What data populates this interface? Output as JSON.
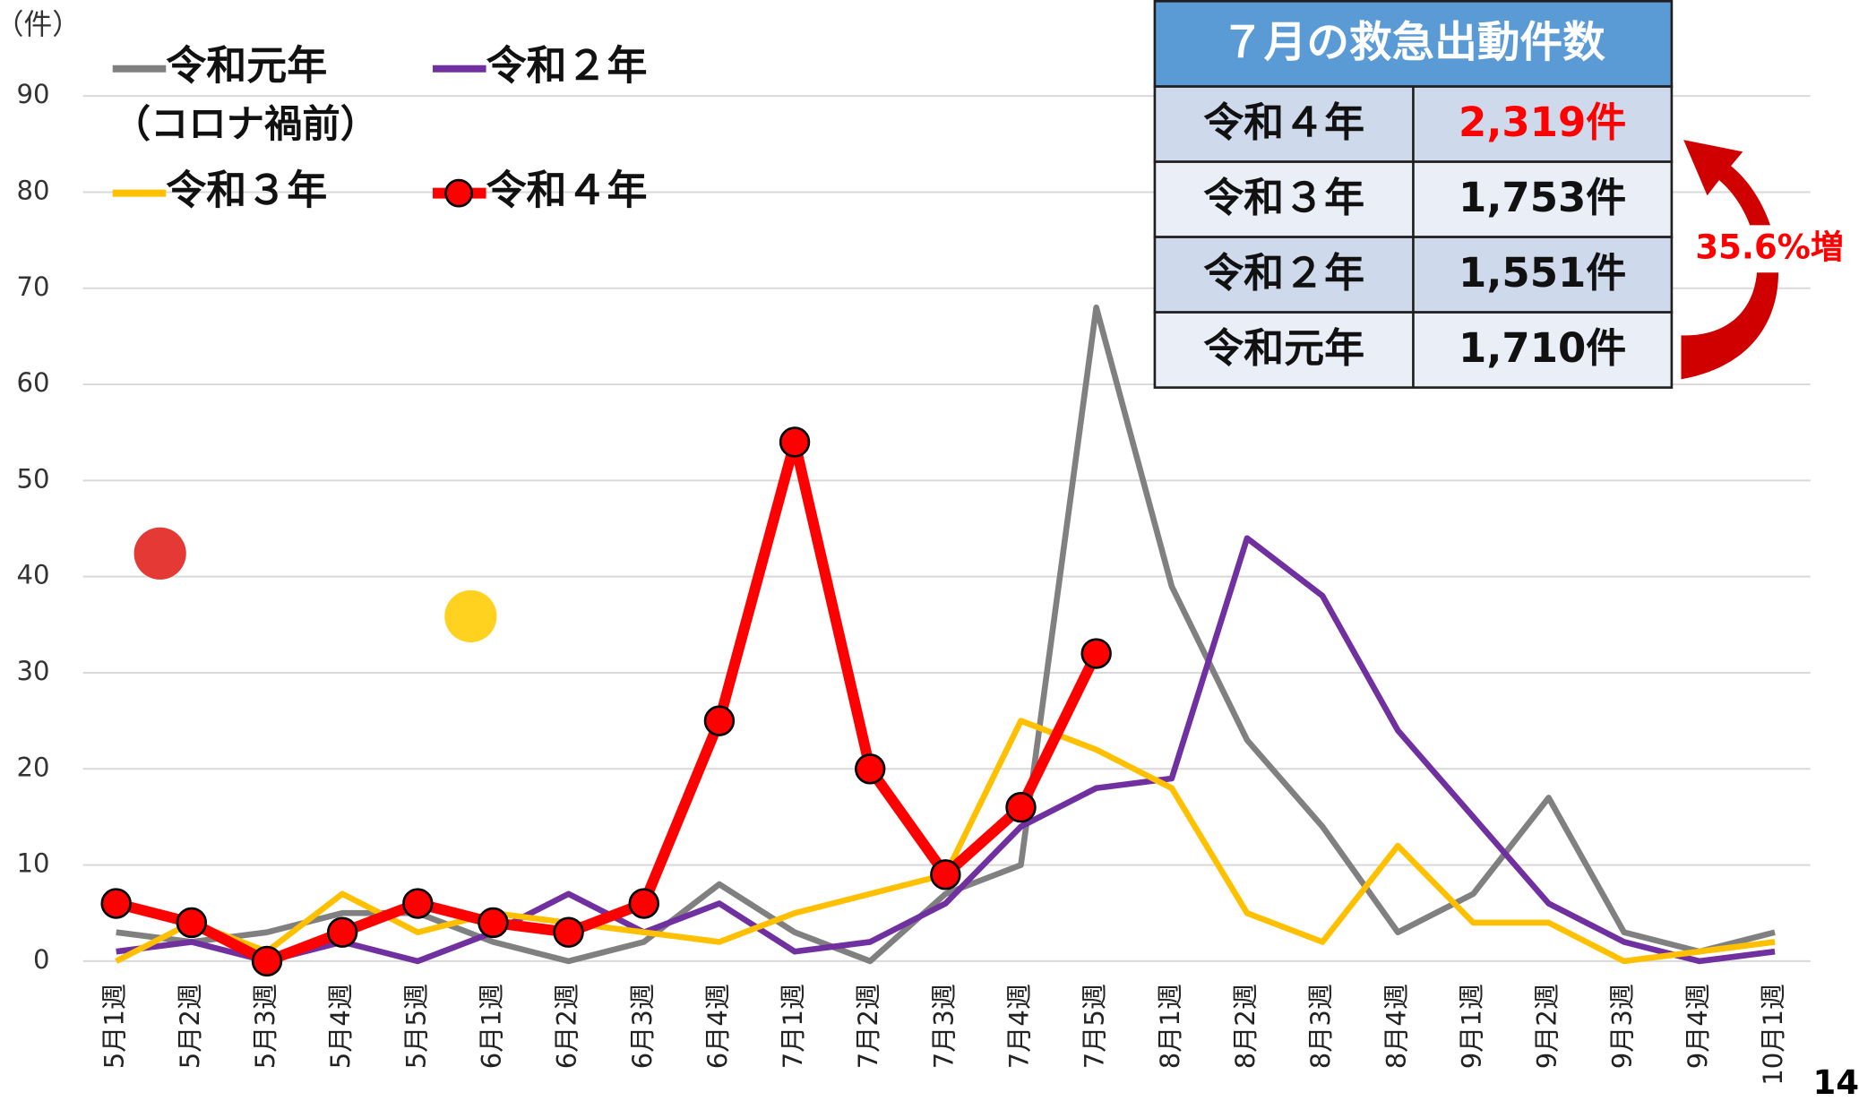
{
  "chart_data": {
    "type": "line",
    "y_unit": "（件）",
    "categories": [
      "5月1週",
      "5月2週",
      "5月3週",
      "5月4週",
      "5月5週",
      "6月1週",
      "6月2週",
      "6月3週",
      "6月4週",
      "7月1週",
      "7月2週",
      "7月3週",
      "7月4週",
      "7月5週",
      "8月1週",
      "8月2週",
      "8月3週",
      "8月4週",
      "9月1週",
      "9月2週",
      "9月3週",
      "9月4週",
      "10月1週"
    ],
    "series": [
      {
        "name": "令和元年",
        "color": "#808080",
        "values": [
          3,
          2,
          3,
          5,
          5,
          2,
          0,
          2,
          8,
          3,
          0,
          7,
          10,
          68,
          39,
          23,
          14,
          3,
          7,
          17,
          3,
          1,
          3
        ]
      },
      {
        "name": "令和２年",
        "color": "#7030a0",
        "values": [
          1,
          2,
          0,
          2,
          0,
          3,
          7,
          3,
          6,
          1,
          2,
          6,
          14,
          18,
          19,
          44,
          38,
          24,
          15,
          6,
          2,
          0,
          1
        ]
      },
      {
        "name": "令和３年",
        "color": "#ffc000",
        "values": [
          0,
          4,
          1,
          7,
          3,
          5,
          4,
          3,
          2,
          5,
          7,
          9,
          25,
          22,
          18,
          5,
          2,
          12,
          4,
          4,
          0,
          1,
          2
        ]
      },
      {
        "name": "令和４年",
        "color": "#ff0000",
        "markers": true,
        "values": [
          6,
          4,
          0,
          3,
          6,
          4,
          3,
          6,
          25,
          54,
          20,
          9,
          16,
          32,
          null,
          null,
          null,
          null,
          null,
          null,
          null,
          null,
          null
        ]
      }
    ],
    "legend_note": "（コロナ禍前）",
    "ylim": [
      0,
      90
    ],
    "yticks": [
      0,
      10,
      20,
      30,
      40,
      50,
      60,
      70,
      80,
      90
    ],
    "grid": true
  },
  "table": {
    "title": "７月の救急出動件数",
    "rows": [
      [
        "令和４年",
        "2,319件"
      ],
      [
        "令和３年",
        "1,753件"
      ],
      [
        "令和２年",
        "1,551件"
      ],
      [
        "令和元年",
        "1,710件"
      ]
    ]
  },
  "annotation": "35.6%増",
  "page_number": "14"
}
